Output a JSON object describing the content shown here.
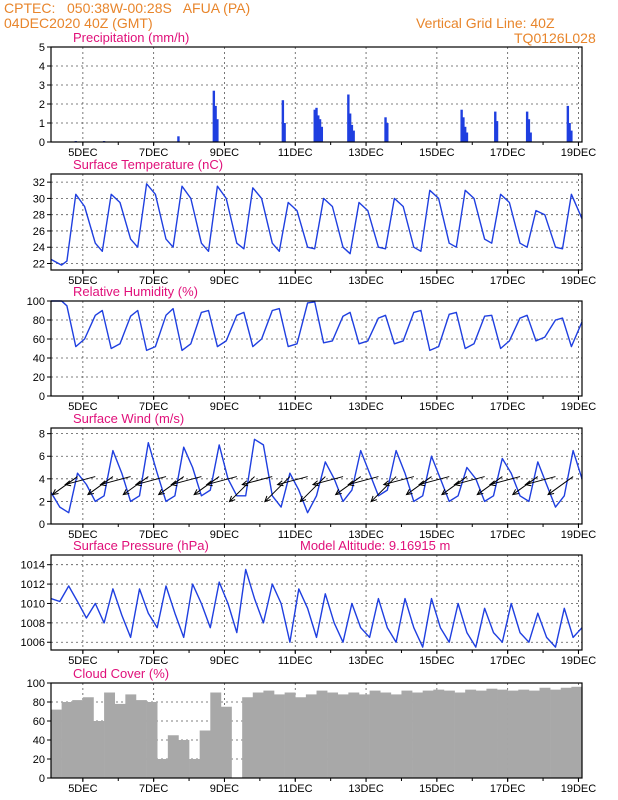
{
  "header": {
    "line1": "CPTEC:   050:38W-00:28S   AFUA (PA)",
    "line2": "04DEC2020 40Z (GMT)",
    "grid_note": "Vertical Grid Line: 40Z",
    "model_code": "TQ0126L028"
  },
  "colors": {
    "header": "#e8852b",
    "title": "#e0107a",
    "series": "#1f3fe0",
    "cloud": "#a8a8a8",
    "frame": "#000000"
  },
  "x_axis": {
    "ticks": [
      "5DEC",
      "7DEC",
      "9DEC",
      "11DEC",
      "13DEC",
      "15DEC",
      "17DEC",
      "19DEC"
    ],
    "tick_days": [
      5,
      7,
      9,
      11,
      13,
      15,
      17,
      19
    ],
    "range_days": [
      4.1,
      19.1
    ]
  },
  "chart_data": [
    {
      "id": "precip",
      "type": "bar",
      "title": "Precipitation (mm/h)",
      "ylim": [
        0,
        5
      ],
      "yticks": [
        "0",
        "1",
        "2",
        "3",
        "4",
        "5"
      ],
      "x": [
        4.8,
        5.6,
        7.7,
        8.7,
        8.75,
        8.8,
        10.65,
        10.7,
        11.55,
        11.6,
        11.65,
        11.7,
        11.75,
        12.5,
        12.55,
        12.6,
        12.65,
        13.55,
        13.6,
        15.7,
        15.75,
        15.8,
        15.85,
        16.65,
        16.7,
        17.55,
        17.6,
        17.65,
        18.7,
        18.75,
        18.8
      ],
      "values": [
        0.05,
        0.05,
        0.3,
        2.7,
        1.9,
        1.2,
        2.2,
        1.0,
        1.7,
        1.8,
        1.4,
        1.2,
        0.8,
        2.5,
        1.5,
        0.9,
        0.6,
        1.3,
        1.0,
        1.7,
        1.3,
        0.8,
        0.5,
        1.6,
        1.1,
        1.6,
        1.2,
        0.5,
        1.9,
        1.0,
        0.6
      ]
    },
    {
      "id": "temp",
      "type": "line",
      "title": "Surface Temperature (nC)",
      "ylim": [
        21.2,
        33
      ],
      "yticks": [
        "22",
        "24",
        "26",
        "28",
        "30",
        "32"
      ],
      "x": [
        4.1,
        4.4,
        4.55,
        4.8,
        5.05,
        5.35,
        5.55,
        5.8,
        6.05,
        6.35,
        6.55,
        6.8,
        7.05,
        7.35,
        7.55,
        7.8,
        8.05,
        8.35,
        8.55,
        8.8,
        9.05,
        9.35,
        9.55,
        9.8,
        10.05,
        10.35,
        10.55,
        10.8,
        11.05,
        11.35,
        11.55,
        11.8,
        12.05,
        12.35,
        12.55,
        12.8,
        13.05,
        13.35,
        13.55,
        13.8,
        14.05,
        14.35,
        14.55,
        14.8,
        15.05,
        15.35,
        15.55,
        15.8,
        16.05,
        16.35,
        16.55,
        16.8,
        17.05,
        17.35,
        17.55,
        17.8,
        18.05,
        18.35,
        18.55,
        18.8,
        19.1
      ],
      "values": [
        22.5,
        21.8,
        22.3,
        30.5,
        29.0,
        24.5,
        23.5,
        30.5,
        29.5,
        25.0,
        24.0,
        31.8,
        30.5,
        25.0,
        24.0,
        31.5,
        30.0,
        24.5,
        23.5,
        31.5,
        30.0,
        24.5,
        23.8,
        31.3,
        30.0,
        24.5,
        23.5,
        29.5,
        28.5,
        24.0,
        23.8,
        30.0,
        29.0,
        24.0,
        23.2,
        29.5,
        28.5,
        24.0,
        23.8,
        30.0,
        29.0,
        24.0,
        23.5,
        31.0,
        30.0,
        24.5,
        24.0,
        31.0,
        30.0,
        25.0,
        24.5,
        30.5,
        29.5,
        24.5,
        24.0,
        28.5,
        28.0,
        24.0,
        23.8,
        30.5,
        27.5
      ]
    },
    {
      "id": "rh",
      "type": "line",
      "title": "Relative Humidity (%)",
      "ylim": [
        0,
        100
      ],
      "yticks": [
        "0",
        "20",
        "40",
        "60",
        "80",
        "100"
      ],
      "x": [
        4.1,
        4.4,
        4.55,
        4.8,
        5.05,
        5.35,
        5.55,
        5.8,
        6.05,
        6.35,
        6.55,
        6.8,
        7.05,
        7.35,
        7.55,
        7.8,
        8.05,
        8.35,
        8.55,
        8.8,
        9.05,
        9.35,
        9.55,
        9.8,
        10.05,
        10.35,
        10.55,
        10.8,
        11.05,
        11.35,
        11.55,
        11.8,
        12.05,
        12.35,
        12.55,
        12.8,
        13.05,
        13.35,
        13.55,
        13.8,
        14.05,
        14.35,
        14.55,
        14.8,
        15.05,
        15.35,
        15.55,
        15.8,
        16.05,
        16.35,
        16.55,
        16.8,
        17.05,
        17.35,
        17.55,
        17.8,
        18.05,
        18.35,
        18.55,
        18.8,
        19.1
      ],
      "values": [
        100,
        100,
        95,
        52,
        60,
        85,
        90,
        50,
        55,
        84,
        90,
        48,
        52,
        85,
        92,
        48,
        55,
        88,
        90,
        52,
        58,
        85,
        88,
        52,
        60,
        90,
        92,
        52,
        55,
        98,
        99,
        56,
        58,
        84,
        88,
        55,
        58,
        82,
        85,
        55,
        58,
        88,
        90,
        48,
        52,
        86,
        88,
        50,
        55,
        84,
        85,
        50,
        58,
        82,
        85,
        58,
        62,
        80,
        82,
        52,
        78
      ]
    },
    {
      "id": "wind",
      "type": "line",
      "title": "Surface Wind (m/s)",
      "ylim": [
        0,
        8.5
      ],
      "yticks": [
        "0",
        "2",
        "4",
        "6",
        "8"
      ],
      "x": [
        4.1,
        4.35,
        4.6,
        4.85,
        5.1,
        5.35,
        5.6,
        5.85,
        6.1,
        6.35,
        6.6,
        6.85,
        7.1,
        7.35,
        7.6,
        7.85,
        8.1,
        8.35,
        8.6,
        8.85,
        9.1,
        9.35,
        9.6,
        9.85,
        10.1,
        10.35,
        10.6,
        10.85,
        11.1,
        11.35,
        11.6,
        11.85,
        12.1,
        12.35,
        12.6,
        12.85,
        13.1,
        13.35,
        13.6,
        13.85,
        14.1,
        14.35,
        14.6,
        14.85,
        15.1,
        15.35,
        15.6,
        15.85,
        16.1,
        16.35,
        16.6,
        16.85,
        17.1,
        17.35,
        17.6,
        17.85,
        18.1,
        18.35,
        18.6,
        18.85,
        19.1
      ],
      "values": [
        2.8,
        1.5,
        1.0,
        4.5,
        3.5,
        2.0,
        2.5,
        6.5,
        4.5,
        2.0,
        2.5,
        7.2,
        4.5,
        2.0,
        2.5,
        6.8,
        5.0,
        2.5,
        3.0,
        7.0,
        4.0,
        2.5,
        2.5,
        7.5,
        7.0,
        2.5,
        1.5,
        4.5,
        3.0,
        1.0,
        2.5,
        5.5,
        4.0,
        2.0,
        3.0,
        6.5,
        4.5,
        2.5,
        3.0,
        6.5,
        4.5,
        2.0,
        2.5,
        6.0,
        4.0,
        2.0,
        2.5,
        5.0,
        4.0,
        2.0,
        2.5,
        5.8,
        4.5,
        2.5,
        2.0,
        5.5,
        3.5,
        1.5,
        2.5,
        6.5,
        4.0
      ],
      "vectors_x": [
        4.85,
        5.35,
        5.85,
        6.35,
        6.85,
        7.35,
        7.85,
        8.35,
        8.85,
        9.35,
        9.85,
        10.35,
        10.85,
        11.35,
        11.85,
        12.35,
        12.85,
        13.35,
        13.85,
        14.35,
        14.85,
        15.35,
        15.85,
        16.35,
        16.85,
        17.35,
        17.85,
        18.35,
        18.85
      ],
      "vectors_u": [
        -2.5,
        -3,
        -2.5,
        -3,
        -2.5,
        -3,
        -2.5,
        -3,
        -2.5,
        -3,
        -2.5,
        -3,
        -2.5,
        -3,
        -2.5,
        -3,
        -2.5,
        -3,
        -2.5,
        -3,
        -2.5,
        -3,
        -2.5,
        -3,
        -2.5,
        -3,
        -2.5,
        -3,
        -2.5
      ],
      "vectors_v": [
        -1.8,
        -0.8,
        -1.8,
        -0.8,
        -1.8,
        -0.8,
        -1.8,
        -0.8,
        -1.8,
        -0.8,
        -2.5,
        -0.8,
        -2.5,
        -0.8,
        -2.5,
        -0.8,
        -1.8,
        -0.8,
        -2.5,
        -0.8,
        -1.8,
        -0.8,
        -1.8,
        -0.8,
        -1.8,
        -0.8,
        -1.8,
        -0.8,
        -1.8
      ]
    },
    {
      "id": "pres",
      "type": "line",
      "title": "Surface Pressure (hPa)",
      "annotation": "Model Altitude: 9.16915 m",
      "ylim": [
        1005.2,
        1015
      ],
      "yticks": [
        "1006",
        "1008",
        "1010",
        "1012",
        "1014"
      ],
      "x": [
        4.1,
        4.35,
        4.6,
        4.85,
        5.1,
        5.35,
        5.6,
        5.85,
        6.1,
        6.35,
        6.6,
        6.85,
        7.1,
        7.35,
        7.6,
        7.85,
        8.1,
        8.35,
        8.6,
        8.85,
        9.1,
        9.35,
        9.6,
        9.85,
        10.1,
        10.35,
        10.6,
        10.85,
        11.1,
        11.35,
        11.6,
        11.85,
        12.1,
        12.35,
        12.6,
        12.85,
        13.1,
        13.35,
        13.6,
        13.85,
        14.1,
        14.35,
        14.6,
        14.85,
        15.1,
        15.35,
        15.6,
        15.85,
        16.1,
        16.35,
        16.6,
        16.85,
        17.1,
        17.35,
        17.6,
        17.85,
        18.1,
        18.35,
        18.6,
        18.85,
        19.1
      ],
      "values": [
        1010.5,
        1010.2,
        1011.8,
        1010.2,
        1008.5,
        1010.0,
        1008.0,
        1011.5,
        1008.8,
        1006.5,
        1011.5,
        1009.0,
        1007.5,
        1011.8,
        1009.0,
        1006.5,
        1012.0,
        1010.0,
        1007.5,
        1012.2,
        1010.0,
        1007.0,
        1013.5,
        1010.5,
        1008.0,
        1012.0,
        1010.0,
        1006.0,
        1011.5,
        1009.5,
        1006.5,
        1011.0,
        1008.0,
        1006.0,
        1010.0,
        1007.5,
        1006.5,
        1010.5,
        1007.5,
        1006.0,
        1010.5,
        1007.5,
        1005.5,
        1010.5,
        1007.5,
        1006.0,
        1010.0,
        1007.0,
        1005.5,
        1009.5,
        1007.0,
        1006.0,
        1010.0,
        1007.0,
        1006.0,
        1009.0,
        1006.5,
        1005.5,
        1009.5,
        1006.5,
        1007.5
      ]
    },
    {
      "id": "cloud",
      "type": "area",
      "title": "Cloud Cover (%)",
      "ylim": [
        0,
        100
      ],
      "yticks": [
        "0",
        "20",
        "40",
        "60",
        "80",
        "100"
      ],
      "x": [
        4.1,
        4.4,
        4.7,
        5.0,
        5.3,
        5.6,
        5.9,
        6.2,
        6.5,
        6.8,
        7.1,
        7.4,
        7.7,
        8.0,
        8.3,
        8.6,
        8.9,
        9.2,
        9.5,
        9.8,
        10.1,
        10.4,
        10.7,
        11.0,
        11.3,
        11.6,
        11.9,
        12.2,
        12.5,
        12.8,
        13.1,
        13.4,
        13.7,
        14.0,
        14.3,
        14.6,
        14.9,
        15.2,
        15.5,
        15.8,
        16.1,
        16.4,
        16.7,
        17.0,
        17.3,
        17.6,
        17.9,
        18.2,
        18.5,
        18.8,
        19.1
      ],
      "values": [
        72,
        80,
        82,
        85,
        60,
        90,
        78,
        88,
        82,
        80,
        20,
        45,
        40,
        20,
        50,
        90,
        75,
        0,
        85,
        90,
        92,
        88,
        90,
        85,
        88,
        92,
        90,
        88,
        90,
        88,
        92,
        90,
        88,
        92,
        90,
        92,
        93,
        92,
        90,
        93,
        92,
        94,
        93,
        92,
        93,
        92,
        95,
        93,
        95,
        96,
        68
      ]
    }
  ]
}
